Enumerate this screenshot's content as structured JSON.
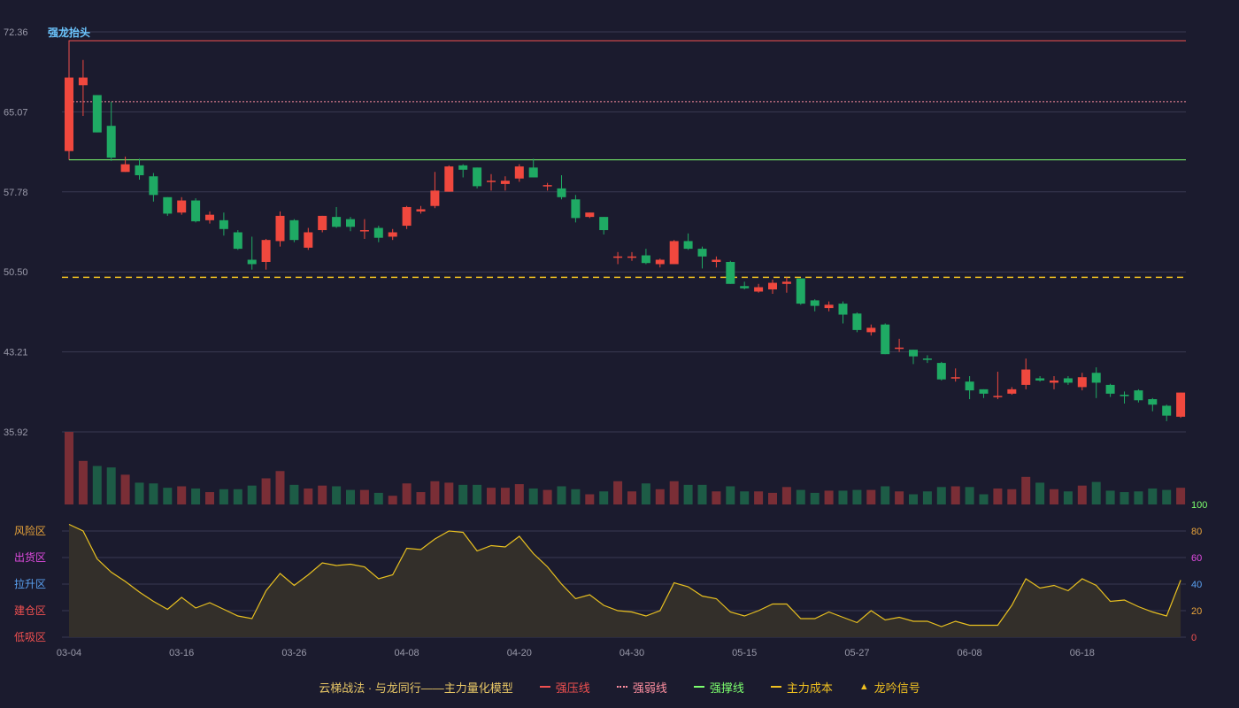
{
  "chart_data": {
    "type": "candlestick",
    "title": "强龙抬头",
    "price_axis": {
      "range": [
        35.92,
        72.36
      ],
      "tick_labels": [
        "72.36",
        "65.07",
        "57.78",
        "50.50",
        "43.21",
        "35.92"
      ]
    },
    "x_tick_labels": [
      "03-04",
      "03-16",
      "03-26",
      "04-08",
      "04-20",
      "04-30",
      "05-15",
      "05-27",
      "06-08",
      "06-18"
    ],
    "x_tick_index": [
      0,
      8,
      16,
      24,
      32,
      40,
      48,
      56,
      64,
      72
    ],
    "candles": [
      [
        61.5,
        68.2,
        61.5,
        68.2
      ],
      [
        67.5,
        68.2,
        69.8,
        64.7
      ],
      [
        66.6,
        63.2,
        66.6,
        63.2
      ],
      [
        63.8,
        60.9,
        66.0,
        60.6
      ],
      [
        59.6,
        60.3,
        61.0,
        59.6
      ],
      [
        60.2,
        59.3,
        60.8,
        58.9
      ],
      [
        59.2,
        57.5,
        59.5,
        56.9
      ],
      [
        57.3,
        55.8,
        57.3,
        55.6
      ],
      [
        55.9,
        57.0,
        57.3,
        55.7
      ],
      [
        57.0,
        55.1,
        57.2,
        55.0
      ],
      [
        55.2,
        55.7,
        56.0,
        54.9
      ],
      [
        55.2,
        54.4,
        55.9,
        53.8
      ],
      [
        54.1,
        52.6,
        54.3,
        52.5
      ],
      [
        51.6,
        51.2,
        53.7,
        50.7
      ],
      [
        51.4,
        53.4,
        53.5,
        50.7
      ],
      [
        53.3,
        55.6,
        56.0,
        52.8
      ],
      [
        55.2,
        53.4,
        55.3,
        53.2
      ],
      [
        52.7,
        54.1,
        54.5,
        52.5
      ],
      [
        54.3,
        55.6,
        55.6,
        54.1
      ],
      [
        55.5,
        54.6,
        56.4,
        54.5
      ],
      [
        55.3,
        54.6,
        55.5,
        54.2
      ],
      [
        54.3,
        54.3,
        55.3,
        53.5
      ],
      [
        54.5,
        53.6,
        54.7,
        53.2
      ],
      [
        53.7,
        54.1,
        54.4,
        53.4
      ],
      [
        54.7,
        56.4,
        56.5,
        54.4
      ],
      [
        56.0,
        56.2,
        56.5,
        55.8
      ],
      [
        56.5,
        57.9,
        59.6,
        56.3
      ],
      [
        57.8,
        60.1,
        60.2,
        57.8
      ],
      [
        60.2,
        59.8,
        60.3,
        59.1
      ],
      [
        60.0,
        58.3,
        60.0,
        58.1
      ],
      [
        58.8,
        58.8,
        59.4,
        57.9
      ],
      [
        58.5,
        58.8,
        59.2,
        57.9
      ],
      [
        59.0,
        60.1,
        60.3,
        58.7
      ],
      [
        60.0,
        59.1,
        60.8,
        59.1
      ],
      [
        58.4,
        58.4,
        58.6,
        57.9
      ],
      [
        58.1,
        57.3,
        59.3,
        57.1
      ],
      [
        57.1,
        55.4,
        57.5,
        55.0
      ],
      [
        55.5,
        55.9,
        55.9,
        55.4
      ],
      [
        55.5,
        54.3,
        55.5,
        53.9
      ],
      [
        51.9,
        51.9,
        52.3,
        51.2
      ],
      [
        51.9,
        51.9,
        52.3,
        51.5
      ],
      [
        52.0,
        51.3,
        52.6,
        51.2
      ],
      [
        51.2,
        51.6,
        51.7,
        50.9
      ],
      [
        51.2,
        53.3,
        53.4,
        51.2
      ],
      [
        53.3,
        52.6,
        54.0,
        52.5
      ],
      [
        52.6,
        51.9,
        52.8,
        50.8
      ],
      [
        51.4,
        51.6,
        51.9,
        50.9
      ],
      [
        51.4,
        49.4,
        51.5,
        49.4
      ],
      [
        49.2,
        49.0,
        49.6,
        48.9
      ],
      [
        48.7,
        49.1,
        49.4,
        48.6
      ],
      [
        48.9,
        49.5,
        49.8,
        48.5
      ],
      [
        49.4,
        49.6,
        50.0,
        48.6
      ],
      [
        49.9,
        47.6,
        49.9,
        47.5
      ],
      [
        47.9,
        47.4,
        48.0,
        46.9
      ],
      [
        47.2,
        47.5,
        47.8,
        46.9
      ],
      [
        47.6,
        46.6,
        47.8,
        45.8
      ],
      [
        46.7,
        45.2,
        46.8,
        45.0
      ],
      [
        45.0,
        45.4,
        45.7,
        44.7
      ],
      [
        45.7,
        43.0,
        45.8,
        43.0
      ],
      [
        43.6,
        43.6,
        44.4,
        43.2
      ],
      [
        43.4,
        42.8,
        43.4,
        42.1
      ],
      [
        42.6,
        42.5,
        42.9,
        42.2
      ],
      [
        42.2,
        40.7,
        42.3,
        40.6
      ],
      [
        40.9,
        40.9,
        41.7,
        40.5
      ],
      [
        40.5,
        39.7,
        41.0,
        38.9
      ],
      [
        39.8,
        39.4,
        39.8,
        39.0
      ],
      [
        39.2,
        39.2,
        41.4,
        38.9
      ],
      [
        39.4,
        39.8,
        40.0,
        39.3
      ],
      [
        40.2,
        41.6,
        42.6,
        39.8
      ],
      [
        40.8,
        40.6,
        41.0,
        40.5
      ],
      [
        40.4,
        40.6,
        41.0,
        39.8
      ],
      [
        40.8,
        40.4,
        41.0,
        40.2
      ],
      [
        40.0,
        40.9,
        41.3,
        39.7
      ],
      [
        41.3,
        40.4,
        41.8,
        39.0
      ],
      [
        40.2,
        39.4,
        40.3,
        39.1
      ],
      [
        39.3,
        39.2,
        39.6,
        38.5
      ],
      [
        39.7,
        38.8,
        39.8,
        38.6
      ],
      [
        38.9,
        38.4,
        39.0,
        37.8
      ],
      [
        38.3,
        37.4,
        38.4,
        36.9
      ],
      [
        37.3,
        39.5,
        39.5,
        37.2
      ]
    ],
    "volume": [
      100,
      60,
      53,
      51,
      41,
      30,
      29,
      23,
      25,
      22,
      17,
      21,
      21,
      26,
      36,
      46,
      27,
      22,
      26,
      25,
      20,
      20,
      16,
      12,
      29,
      17,
      32,
      30,
      27,
      27,
      23,
      23,
      28,
      22,
      20,
      25,
      21,
      14,
      18,
      32,
      18,
      29,
      21,
      32,
      27,
      27,
      18,
      25,
      18,
      18,
      16,
      24,
      20,
      16,
      19,
      19,
      20,
      20,
      25,
      18,
      14,
      18,
      24,
      25,
      24,
      14,
      22,
      21,
      38,
      30,
      21,
      18,
      26,
      31,
      19,
      17,
      18,
      22,
      20,
      23
    ],
    "indicator": {
      "range": [
        0,
        100
      ],
      "right_tick_labels": [
        "100",
        "80",
        "60",
        "40",
        "20",
        "0"
      ],
      "zone_labels": [
        {
          "text": "风险区",
          "value": 80,
          "color": "#e8a33a"
        },
        {
          "text": "出货区",
          "value": 60,
          "color": "#e04be0"
        },
        {
          "text": "拉升区",
          "value": 40,
          "color": "#5aa0f0"
        },
        {
          "text": "建仓区",
          "value": 20,
          "color": "#f05050"
        },
        {
          "text": "低吸区",
          "value": 0,
          "color": "#f05050"
        }
      ],
      "values": [
        85,
        80,
        59,
        49,
        42,
        34,
        27,
        21,
        30,
        22,
        26,
        21,
        16,
        14,
        35,
        48,
        39,
        47,
        56,
        54,
        55,
        53,
        44,
        47,
        67,
        66,
        74,
        80,
        79,
        65,
        69,
        68,
        76,
        63,
        53,
        40,
        29,
        32,
        24,
        20,
        19,
        16,
        20,
        41,
        38,
        31,
        29,
        19,
        16,
        20,
        25,
        25,
        14,
        14,
        19,
        15,
        11,
        20,
        13,
        15,
        12,
        12,
        8,
        12,
        9,
        9,
        9,
        24,
        44,
        37,
        39,
        35,
        44,
        39,
        27,
        28,
        23,
        19,
        16,
        43
      ]
    },
    "lines": {
      "strong_pressure": 71.4,
      "strong_weak": 66.0,
      "strong_support": 60.7,
      "main_cost": 50.0
    },
    "grid": true,
    "legend_position": "bottom-center"
  },
  "legend": {
    "title": "云梯战法 · 与龙同行——主力量化模型",
    "items": [
      {
        "label": "强压线",
        "color": "#f05050",
        "style": "solid"
      },
      {
        "label": "强弱线",
        "color": "#ff8fa0",
        "style": "dotted"
      },
      {
        "label": "强撑线",
        "color": "#7cff6e",
        "style": "solid"
      },
      {
        "label": "主力成本",
        "color": "#f0c020",
        "style": "dashed"
      },
      {
        "label": "龙吟信号",
        "color": "#f0c020",
        "style": "triangle"
      }
    ]
  },
  "colors": {
    "background": "#1b1b2e",
    "grid": "#3a3a52",
    "axis_text": "#9a9aaa",
    "up": "#f0483e",
    "down": "#1faa64",
    "vol_up": "#7a2e36",
    "vol_down": "#1d5c46",
    "indicator_line": "#e8c020",
    "indicator_fill": "#332f2a",
    "title": "#6cc6ff"
  }
}
